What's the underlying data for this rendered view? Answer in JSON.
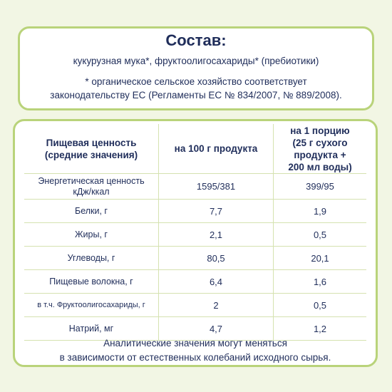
{
  "composition": {
    "title": "Состав:",
    "ingredients": "кукурузная мука*, фруктоолигосахариды* (пребиотики)",
    "note_line1": "* органическое сельское хозяйство соответствует",
    "note_line2": "законодательству ЕС (Регламенты ЕС № 834/2007, № 889/2008)."
  },
  "nutrition": {
    "headers": {
      "label_line1": "Пищевая ценность",
      "label_line2": "(средние значения)",
      "per100": "на 100 г продукта",
      "portion_line1": "на 1 порцию",
      "portion_line2": "(25 г сухого",
      "portion_line3": "продукта +",
      "portion_line4": "200 мл воды)"
    },
    "rows": [
      {
        "label_line1": "Энергетическая ценность",
        "label_line2": "кДж/ккал",
        "per100": "1595/381",
        "portion": "399/95"
      },
      {
        "label": "Белки, г",
        "per100": "7,7",
        "portion": "1,9"
      },
      {
        "label": "Жиры, г",
        "per100": "2,1",
        "portion": "0,5"
      },
      {
        "label": "Углеводы, г",
        "per100": "80,5",
        "portion": "20,1"
      },
      {
        "label": "Пищевые волокна, г",
        "per100": "6,4",
        "portion": "1,6"
      },
      {
        "label": "в т.ч. Фруктоолигосахариды, г",
        "per100": "2",
        "portion": "0,5"
      },
      {
        "label": "Натрий, мг",
        "per100": "4,7",
        "portion": "1,2"
      }
    ],
    "footnote_line1": "Аналитические значения могут меняться",
    "footnote_line2": "в зависимости от естественных колебаний исходного сырья."
  },
  "colors": {
    "background": "#f2f6e4",
    "border": "#b9d37a",
    "text": "#1f2d5a"
  }
}
